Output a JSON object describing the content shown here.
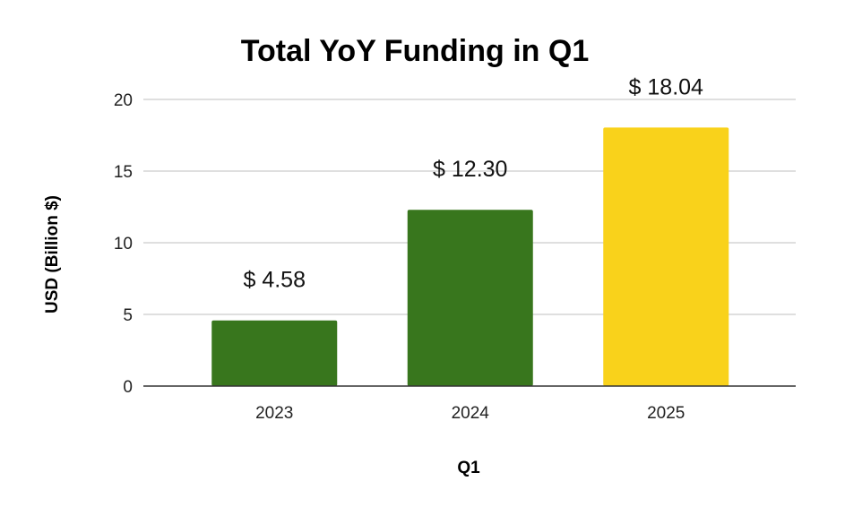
{
  "chart_data": {
    "type": "bar",
    "title": "Total YoY Funding in Q1",
    "xlabel": "Q1",
    "ylabel": "USD (Billion $)",
    "categories": [
      "2023",
      "2024",
      "2025"
    ],
    "values": [
      4.58,
      12.3,
      18.04
    ],
    "data_labels": [
      "$ 4.58",
      "$ 12.30",
      "$ 18.04"
    ],
    "bar_colors": [
      "#38761d",
      "#38761d",
      "#f9d21b"
    ],
    "ylim": [
      0,
      20
    ],
    "yticks": [
      0,
      5,
      10,
      15,
      20
    ],
    "grid": true,
    "legend": "none"
  }
}
